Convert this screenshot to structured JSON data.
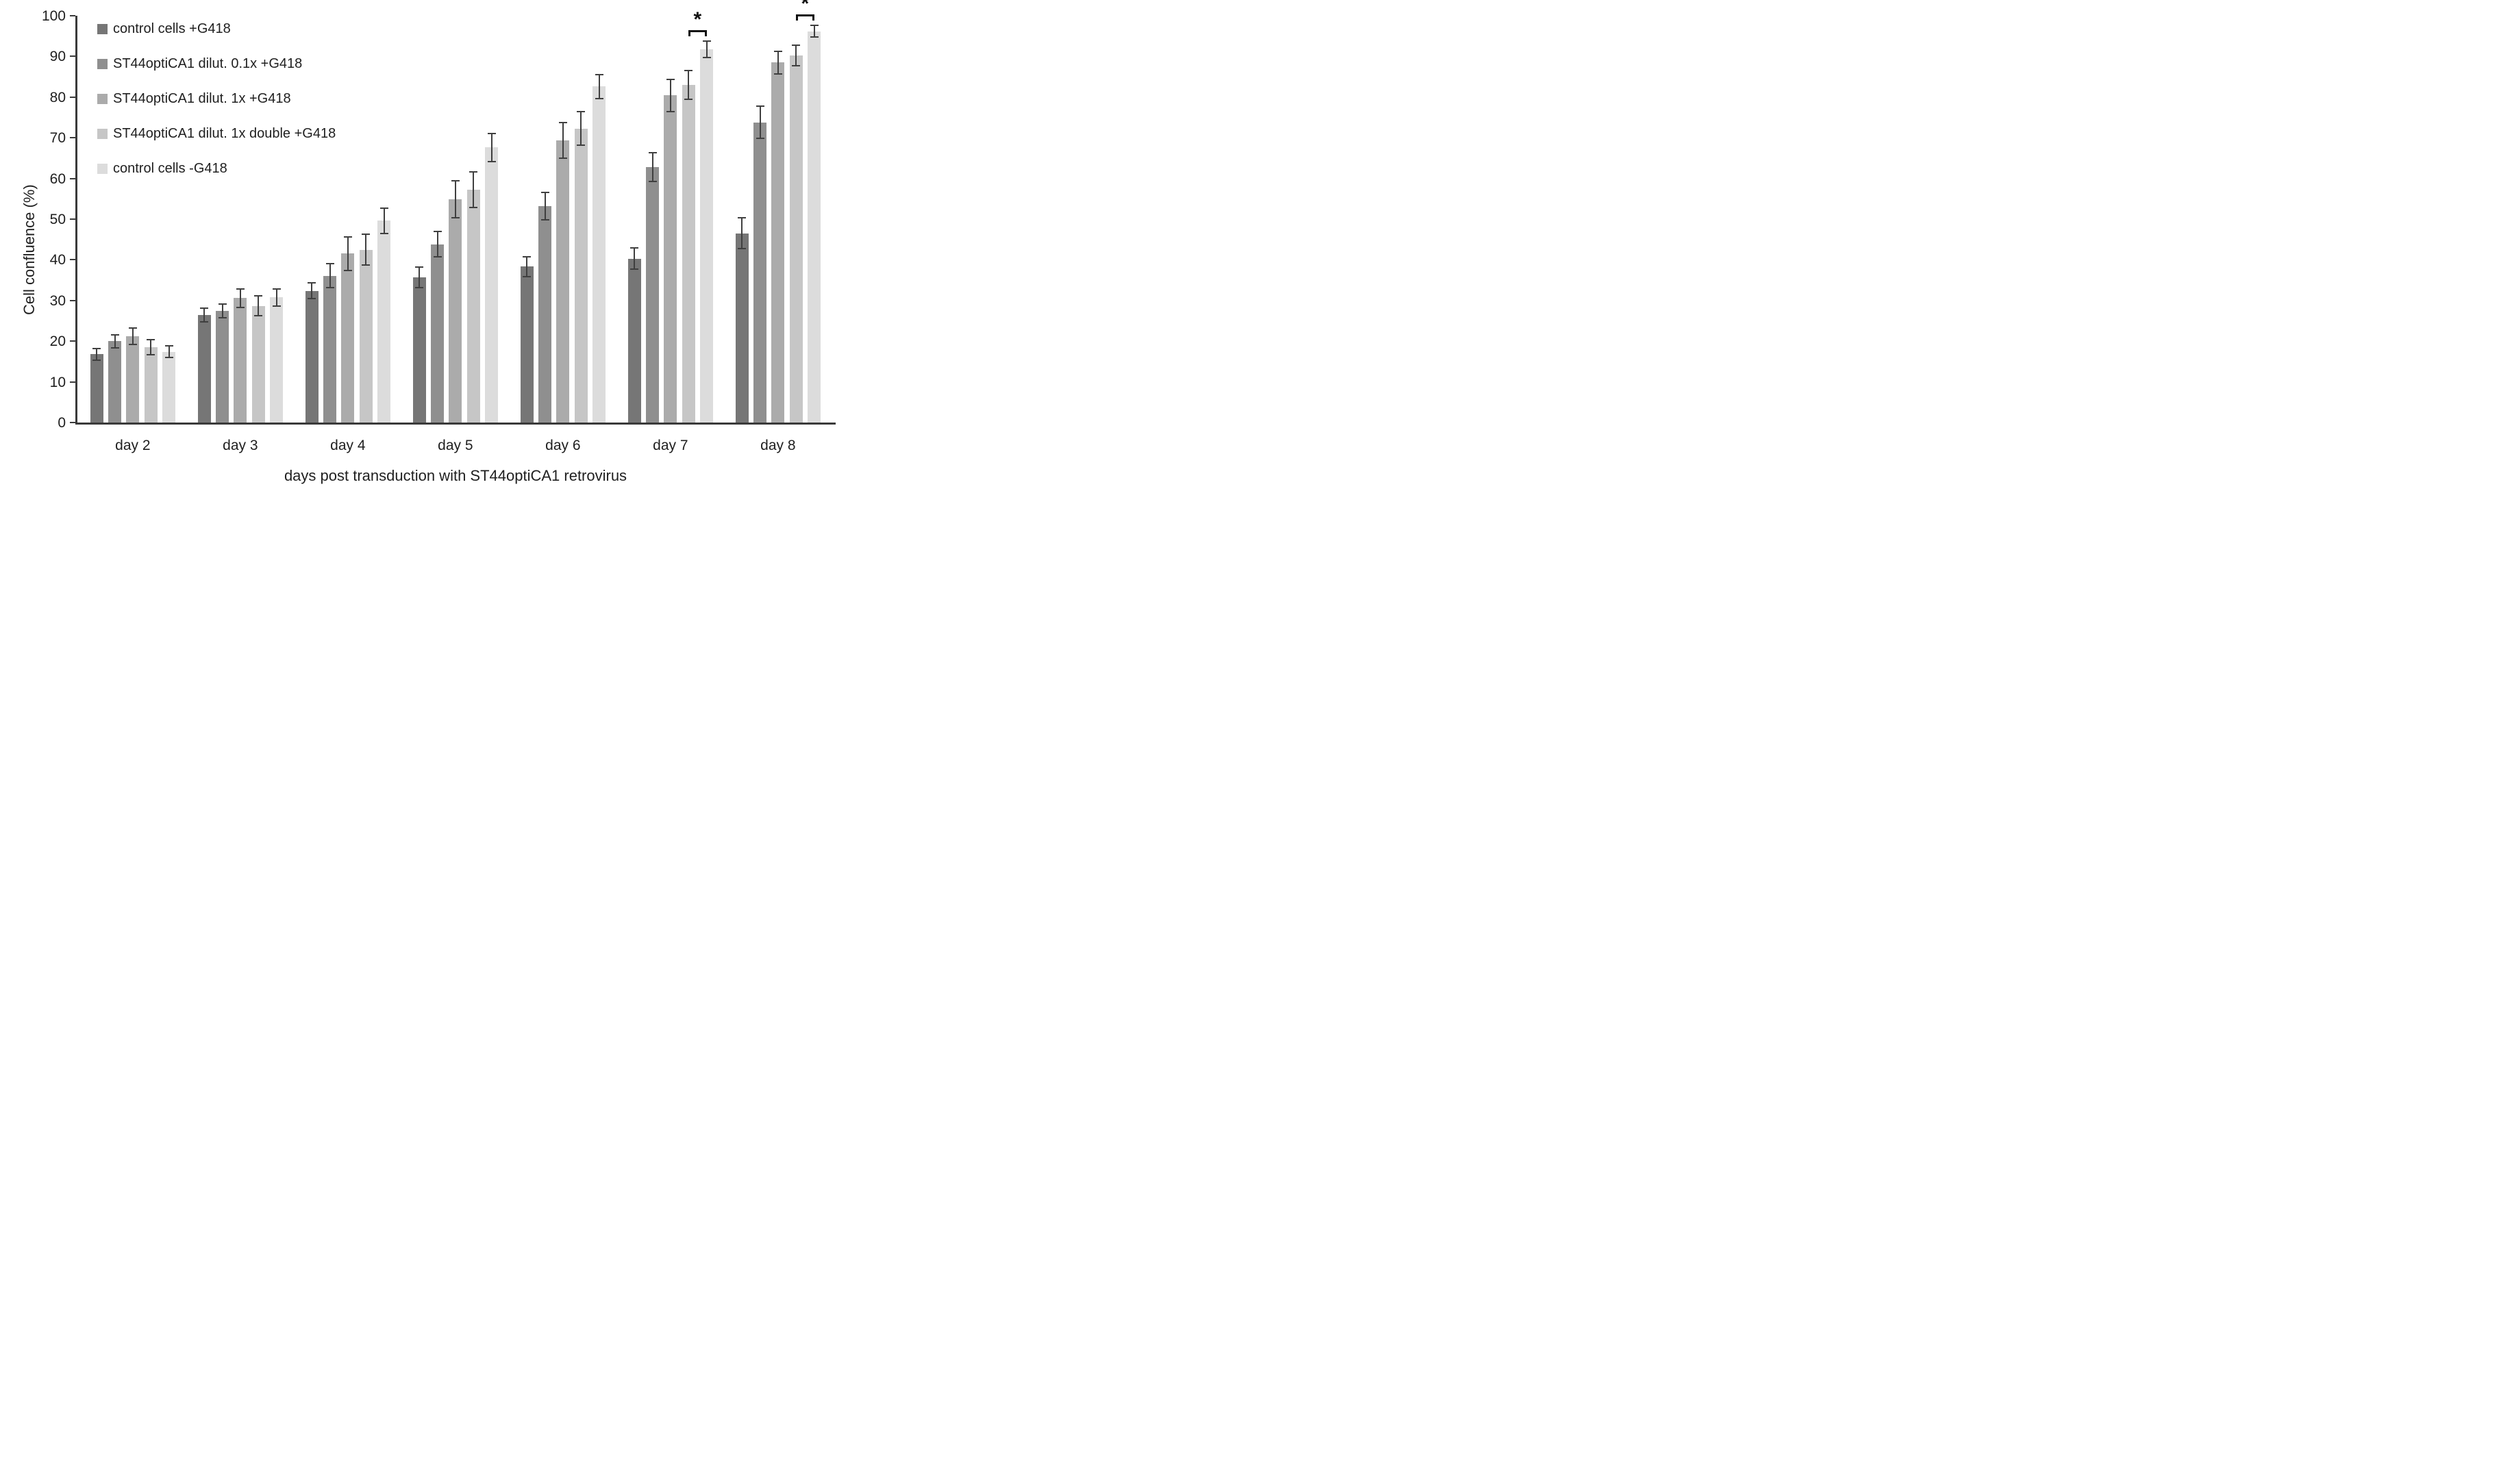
{
  "chart_data": {
    "type": "bar",
    "title": "",
    "xlabel": "days post transduction with ST44optiCA1 retrovirus",
    "ylabel": "Cell confluence (%)",
    "ylim": [
      0,
      100
    ],
    "ytick_step": 10,
    "ytick_labels": [
      "0",
      "10",
      "20",
      "30",
      "40",
      "50",
      "60",
      "70",
      "80",
      "90",
      "100"
    ],
    "grid": false,
    "legend_position": "top-left",
    "background_color": "#ffffff",
    "axis_color": "#3a3a3a",
    "error_bar_color": "#3f3f3f",
    "categories": [
      "day 2",
      "day 3",
      "day 4",
      "day 5",
      "day 6",
      "day 7",
      "day 8"
    ],
    "series": [
      {
        "name": "control cells +G418",
        "color": "#767676",
        "values": [
          16.8,
          26.4,
          32.4,
          35.7,
          38.3,
          40.3,
          46.5
        ],
        "errors": [
          1.4,
          1.7,
          2.0,
          2.5,
          2.5,
          2.6,
          3.8
        ]
      },
      {
        "name": "ST44optiCA1 dilut. 0.1x +G418",
        "color": "#8f8f8f",
        "values": [
          20.0,
          27.5,
          36.1,
          43.8,
          53.2,
          62.8,
          73.8
        ],
        "errors": [
          1.6,
          1.7,
          2.9,
          3.1,
          3.4,
          3.5,
          3.9
        ]
      },
      {
        "name": "ST44optiCA1 dilut. 1x +G418",
        "color": "#ababab",
        "values": [
          21.2,
          30.6,
          41.5,
          54.9,
          69.3,
          80.4,
          88.5
        ],
        "errors": [
          2.0,
          2.3,
          4.1,
          4.5,
          4.4,
          4.0,
          2.8
        ]
      },
      {
        "name": "ST44optiCA1 dilut. 1x double +G418",
        "color": "#c6c6c6",
        "values": [
          18.5,
          28.7,
          42.5,
          57.3,
          72.3,
          83.0,
          90.2
        ],
        "errors": [
          1.8,
          2.4,
          3.8,
          4.4,
          4.2,
          3.6,
          2.5
        ]
      },
      {
        "name": "control cells -G418",
        "color": "#dcdcdc",
        "values": [
          17.4,
          30.8,
          49.6,
          67.6,
          82.6,
          91.8,
          96.2
        ],
        "errors": [
          1.4,
          2.1,
          3.1,
          3.4,
          2.9,
          2.0,
          1.4
        ]
      }
    ],
    "significance_markers": [
      {
        "category": "day 7",
        "between_series": [
          3,
          4
        ],
        "label": "*",
        "bracket_y_pct": 96.4
      },
      {
        "category": "day 8",
        "between_series": [
          3,
          4
        ],
        "label": "*",
        "bracket_y_pct": 100.4
      }
    ]
  }
}
